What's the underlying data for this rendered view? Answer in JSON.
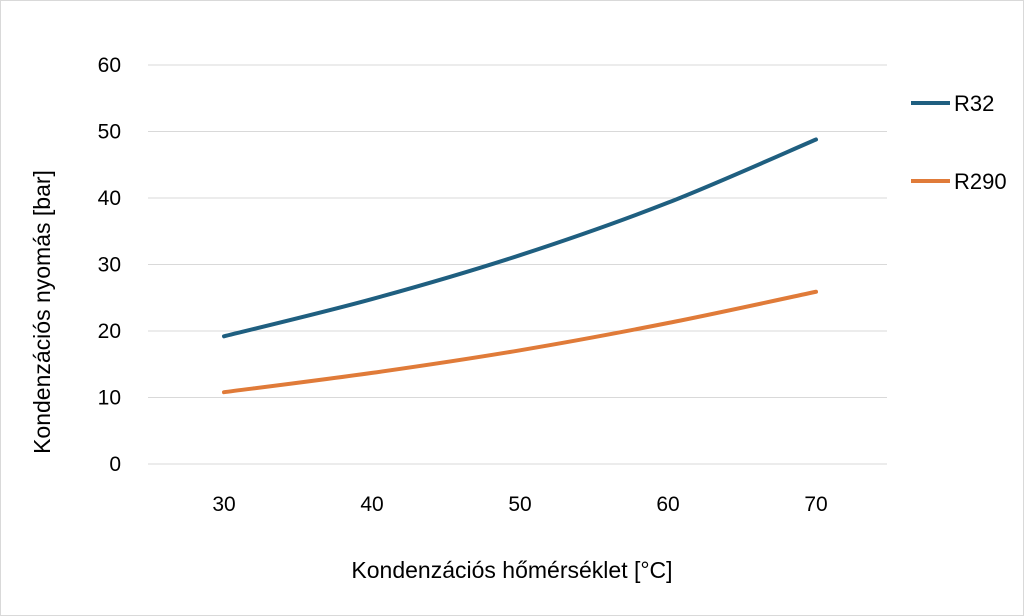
{
  "chart_data": {
    "type": "line",
    "xlabel": "Kondenzációs hőmérséklet [°C]",
    "ylabel": "Kondenzációs nyomás [bar]",
    "x": [
      30,
      40,
      50,
      60,
      70
    ],
    "x_ticks": [
      "30",
      "40",
      "50",
      "60",
      "70"
    ],
    "y_ticks": [
      "0",
      "10",
      "20",
      "30",
      "40",
      "50",
      "60"
    ],
    "ylim": [
      0,
      60
    ],
    "grid": "horizontal",
    "legend_position": "right",
    "series": [
      {
        "name": "R32",
        "color": "#1f5f80",
        "values": [
          19.2,
          24.8,
          31.4,
          39.3,
          48.8
        ]
      },
      {
        "name": "R290",
        "color": "#e07b39",
        "values": [
          10.8,
          13.7,
          17.1,
          21.2,
          25.9
        ]
      }
    ]
  }
}
